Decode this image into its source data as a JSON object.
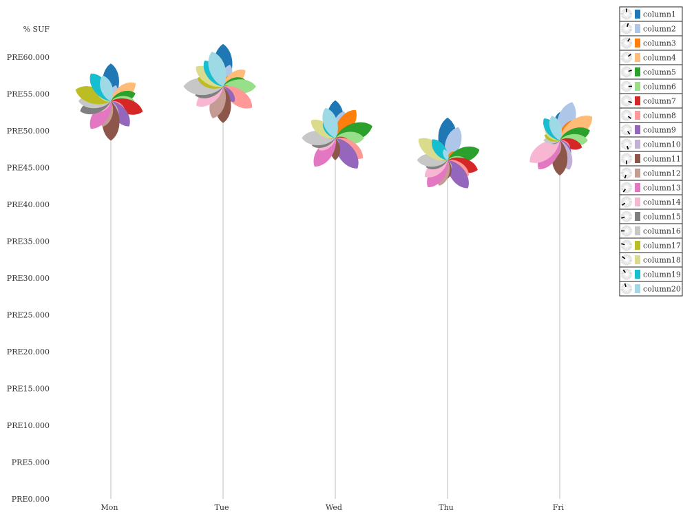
{
  "chart_data": {
    "type": "flower",
    "ylabel": "% SUF",
    "ylim": [
      0,
      64
    ],
    "yticks": [
      0,
      5,
      10,
      15,
      20,
      25,
      30,
      35,
      40,
      45,
      50,
      55,
      60
    ],
    "ytick_labels": [
      "PRE0.000",
      "PRE5.000",
      "PRE10.000",
      "PRE15.000",
      "PRE20.000",
      "PRE25.000",
      "PRE30.000",
      "PRE35.000",
      "PRE40.000",
      "PRE45.000",
      "PRE50.000",
      "PRE55.000",
      "PRE60.000"
    ],
    "categories": [
      "Mon",
      "Tue",
      "Wed",
      "Thu",
      "Fri"
    ],
    "centers": [
      54.0,
      56.0,
      49.0,
      46.0,
      48.7
    ],
    "series": [
      {
        "name": "column1",
        "color": "#1f77b4",
        "values": [
          63,
          71,
          63,
          71,
          47
        ]
      },
      {
        "name": "column2",
        "color": "#aec7e8",
        "values": [
          28,
          38,
          47,
          58,
          67
        ]
      },
      {
        "name": "column3",
        "color": "#ff7f0e",
        "values": [
          16,
          24,
          58,
          18,
          41
        ]
      },
      {
        "name": "column4",
        "color": "#ffbb78",
        "values": [
          51,
          46,
          21,
          14,
          67
        ]
      },
      {
        "name": "column5",
        "color": "#2ca02c",
        "values": [
          43,
          38,
          65,
          56,
          53
        ]
      },
      {
        "name": "column6",
        "color": "#98df8a",
        "values": [
          40,
          55,
          48,
          31,
          47
        ]
      },
      {
        "name": "column7",
        "color": "#d62728",
        "values": [
          56,
          16,
          26,
          53,
          39
        ]
      },
      {
        "name": "column8",
        "color": "#ff9896",
        "values": [
          29,
          60,
          57,
          44,
          21
        ]
      },
      {
        "name": "column9",
        "color": "#9467bd",
        "values": [
          52,
          32,
          63,
          58,
          31
        ]
      },
      {
        "name": "column10",
        "color": "#c5b0d5",
        "values": [
          32,
          16,
          16,
          18,
          52
        ]
      },
      {
        "name": "column11",
        "color": "#8c564b",
        "values": [
          66,
          61,
          37,
          31,
          59
        ]
      },
      {
        "name": "column12",
        "color": "#c49c94",
        "values": [
          45,
          56,
          18,
          45,
          31
        ]
      },
      {
        "name": "column13",
        "color": "#e377c2",
        "values": [
          57,
          23,
          59,
          56,
          60
        ]
      },
      {
        "name": "column14",
        "color": "#f7b6d2",
        "values": [
          29,
          55,
          34,
          47,
          62
        ]
      },
      {
        "name": "column15",
        "color": "#7f7f7f",
        "values": [
          54,
          49,
          41,
          38,
          16
        ]
      },
      {
        "name": "column16",
        "color": "#c7c7c7",
        "values": [
          54,
          66,
          56,
          51,
          27
        ]
      },
      {
        "name": "column17",
        "color": "#bcbd22",
        "values": [
          62,
          45,
          16,
          17,
          27
        ]
      },
      {
        "name": "column18",
        "color": "#dbdb8d",
        "values": [
          28,
          56,
          50,
          60,
          31
        ]
      },
      {
        "name": "column19",
        "color": "#17becf",
        "values": [
          57,
          53,
          34,
          43,
          45
        ]
      },
      {
        "name": "column20",
        "color": "#9edae5",
        "values": [
          45,
          61,
          53,
          19,
          43
        ]
      }
    ],
    "grid": false,
    "legend_position": "top-right"
  }
}
